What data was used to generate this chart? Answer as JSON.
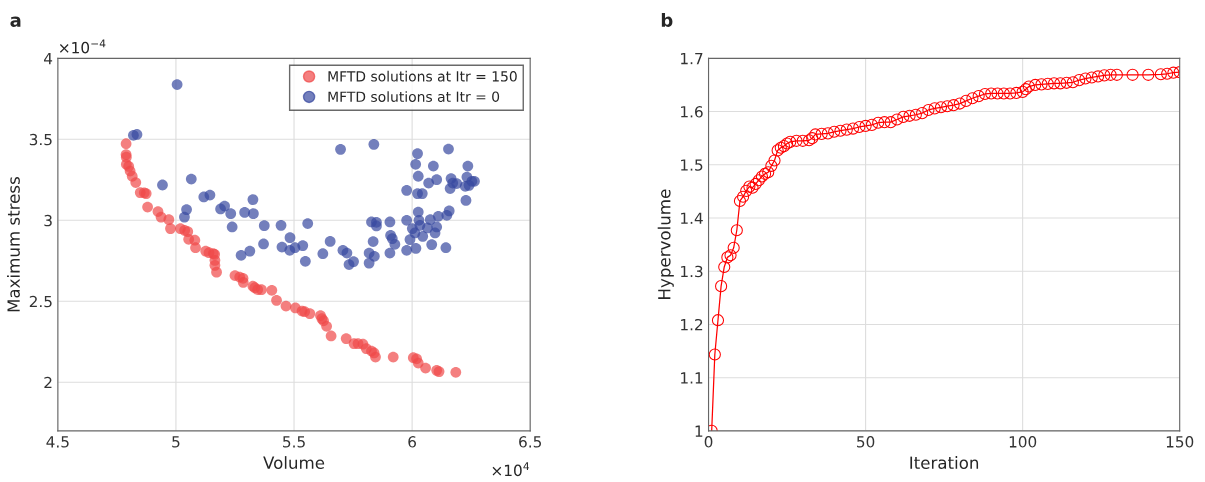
{
  "chart_data": [
    {
      "type": "scatter",
      "title": "a",
      "xlabel": "Volume",
      "ylabel": "Maximum stress",
      "xlim": [
        4.5,
        6.5
      ],
      "xticks": [
        4.5,
        5,
        5.5,
        6,
        6.5
      ],
      "ylim": [
        1.7,
        4
      ],
      "yticks": [
        2,
        2.5,
        3,
        3.5,
        4
      ],
      "grid": true,
      "legend": "top right",
      "marker": "circle",
      "annotations": [
        "×10$^{4}$",
        "×10$^{−4}$"
      ],
      "series": [
        {
          "name": "MFTD solutions at Itr = 150",
          "color": "#f04848",
          "x": [
            4.789,
            4.789,
            4.79,
            4.79,
            4.8,
            4.806,
            4.815,
            4.83,
            4.849,
            4.866,
            4.874,
            4.88,
            4.924,
            4.937,
            4.97,
            4.977,
            5.019,
            5.037,
            5.05,
            5.054,
            5.08,
            5.083,
            5.126,
            5.14,
            5.158,
            5.164,
            5.165,
            5.165,
            5.172,
            5.25,
            5.27,
            5.284,
            5.285,
            5.326,
            5.334,
            5.346,
            5.362,
            5.406,
            5.426,
            5.466,
            5.506,
            5.534,
            5.545,
            5.567,
            5.612,
            5.618,
            5.625,
            5.638,
            5.657,
            5.721,
            5.754,
            5.771,
            5.792,
            5.806,
            5.828,
            5.839,
            5.845,
            5.92,
            6.005,
            6.019,
            6.026,
            6.057,
            6.104,
            6.114,
            6.185
          ],
          "values": [
            3.473,
            3.406,
            3.39,
            3.346,
            3.333,
            3.304,
            3.272,
            3.233,
            3.171,
            3.17,
            3.165,
            3.082,
            3.054,
            3.02,
            3.004,
            2.949,
            2.949,
            2.938,
            2.93,
            2.883,
            2.877,
            2.831,
            2.81,
            2.8,
            2.795,
            2.79,
            2.753,
            2.722,
            2.68,
            2.659,
            2.65,
            2.642,
            2.617,
            2.593,
            2.584,
            2.572,
            2.572,
            2.568,
            2.506,
            2.471,
            2.459,
            2.44,
            2.436,
            2.424,
            2.412,
            2.393,
            2.38,
            2.346,
            2.286,
            2.27,
            2.239,
            2.239,
            2.235,
            2.208,
            2.193,
            2.181,
            2.156,
            2.156,
            2.152,
            2.145,
            2.119,
            2.088,
            2.074,
            2.066,
            2.062
          ]
        },
        {
          "name": "MFTD solutions at Itr = 0",
          "color": "#3848a0",
          "x": [
            5.005,
            4.82,
            4.835,
            4.943,
            5.065,
            5.118,
            5.144,
            5.045,
            5.036,
            5.189,
            5.206,
            5.232,
            5.238,
            5.291,
            5.326,
            5.328,
            5.374,
            5.371,
            5.276,
            5.313,
            5.445,
            5.449,
            5.483,
            5.482,
            5.504,
            5.537,
            5.548,
            5.558,
            5.622,
            5.653,
            5.697,
            5.707,
            5.724,
            5.733,
            5.752,
            5.818,
            5.818,
            5.838,
            5.835,
            5.84,
            5.828,
            5.849,
            5.849,
            5.906,
            5.909,
            5.916,
            5.927,
            5.906,
            5.977,
            5.977,
            5.977,
            5.991,
            6.001,
            6.012,
            6.016,
            6.023,
            6.015,
            6.026,
            6.023,
            6.043,
            6.026,
            6.029,
            6.033,
            6.045,
            6.065,
            6.07,
            6.077,
            6.083,
            6.09,
            6.097,
            6.104,
            6.104,
            6.111,
            6.143,
            6.147,
            6.157,
            6.154,
            6.161,
            6.165,
            6.172,
            6.189,
            6.225,
            6.228,
            6.236,
            6.232,
            6.241,
            6.253,
            6.264
          ],
          "values": [
            3.838,
            3.525,
            3.53,
            3.218,
            3.255,
            3.144,
            3.156,
            3.066,
            3.02,
            3.07,
            3.088,
            3.041,
            2.959,
            3.049,
            3.128,
            3.041,
            2.967,
            2.854,
            2.784,
            2.81,
            2.969,
            2.835,
            2.893,
            2.815,
            2.831,
            2.844,
            2.747,
            2.98,
            2.794,
            2.87,
            3.438,
            2.815,
            2.798,
            2.727,
            2.745,
            2.798,
            2.736,
            3.469,
            2.869,
            2.778,
            2.99,
            2.988,
            2.965,
            2.99,
            2.907,
            2.887,
            2.852,
            2.798,
            3.185,
            3.0,
            2.815,
            2.881,
            2.949,
            2.922,
            2.827,
            3.412,
            3.346,
            3.272,
            3.165,
            3.165,
            3.051,
            3.0,
            2.969,
            2.901,
            2.953,
            3.23,
            3.004,
            2.85,
            3.335,
            2.922,
            3.251,
            2.959,
            3.025,
            2.831,
            3.031,
            3.058,
            3.44,
            3.196,
            3.258,
            3.23,
            3.227,
            3.21,
            3.123,
            3.335,
            3.267,
            3.216,
            3.241,
            3.241
          ]
        }
      ]
    },
    {
      "type": "line",
      "title": "b",
      "xlabel": "Iteration",
      "ylabel": "Hypervolume",
      "xlim": [
        0,
        150
      ],
      "xticks": [
        0,
        50,
        100,
        150
      ],
      "ylim": [
        1,
        1.7
      ],
      "yticks": [
        1,
        1.1,
        1.2,
        1.3,
        1.4,
        1.5,
        1.6,
        1.7
      ],
      "grid": true,
      "marker": "circle",
      "line_style": "solid",
      "series": [
        {
          "color": "#ff0000",
          "x": [
            1,
            2,
            3,
            4,
            5,
            6,
            7,
            8,
            9,
            10,
            11,
            12,
            13,
            14,
            15,
            16,
            17,
            18,
            19,
            20,
            21,
            22,
            23,
            24,
            25,
            26,
            28,
            30,
            32,
            33,
            34,
            36,
            38,
            40,
            42,
            44,
            46,
            48,
            50,
            52,
            54,
            56,
            58,
            60,
            62,
            64,
            66,
            68,
            70,
            72,
            74,
            76,
            78,
            80,
            82,
            84,
            86,
            88,
            90,
            92,
            94,
            96,
            98,
            100,
            101,
            102,
            104,
            106,
            108,
            110,
            112,
            114,
            116,
            118,
            120,
            122,
            124,
            126,
            128,
            130,
            135,
            140,
            144,
            146,
            148,
            150
          ],
          "values": [
            1.0,
            1.1435,
            1.208,
            1.272,
            1.308,
            1.326,
            1.33,
            1.344,
            1.377,
            1.432,
            1.44,
            1.451,
            1.459,
            1.457,
            1.464,
            1.471,
            1.478,
            1.483,
            1.486,
            1.498,
            1.508,
            1.527,
            1.532,
            1.535,
            1.54,
            1.543,
            1.545,
            1.545,
            1.546,
            1.55,
            1.557,
            1.558,
            1.559,
            1.562,
            1.564,
            1.566,
            1.568,
            1.571,
            1.573,
            1.575,
            1.579,
            1.58,
            1.58,
            1.585,
            1.59,
            1.592,
            1.594,
            1.597,
            1.603,
            1.606,
            1.608,
            1.61,
            1.612,
            1.615,
            1.62,
            1.625,
            1.629,
            1.633,
            1.634,
            1.634,
            1.634,
            1.634,
            1.635,
            1.637,
            1.642,
            1.647,
            1.65,
            1.651,
            1.652,
            1.653,
            1.653,
            1.654,
            1.655,
            1.659,
            1.662,
            1.664,
            1.666,
            1.668,
            1.669,
            1.669,
            1.669,
            1.669,
            1.67,
            1.671,
            1.673,
            1.674
          ]
        }
      ]
    }
  ]
}
